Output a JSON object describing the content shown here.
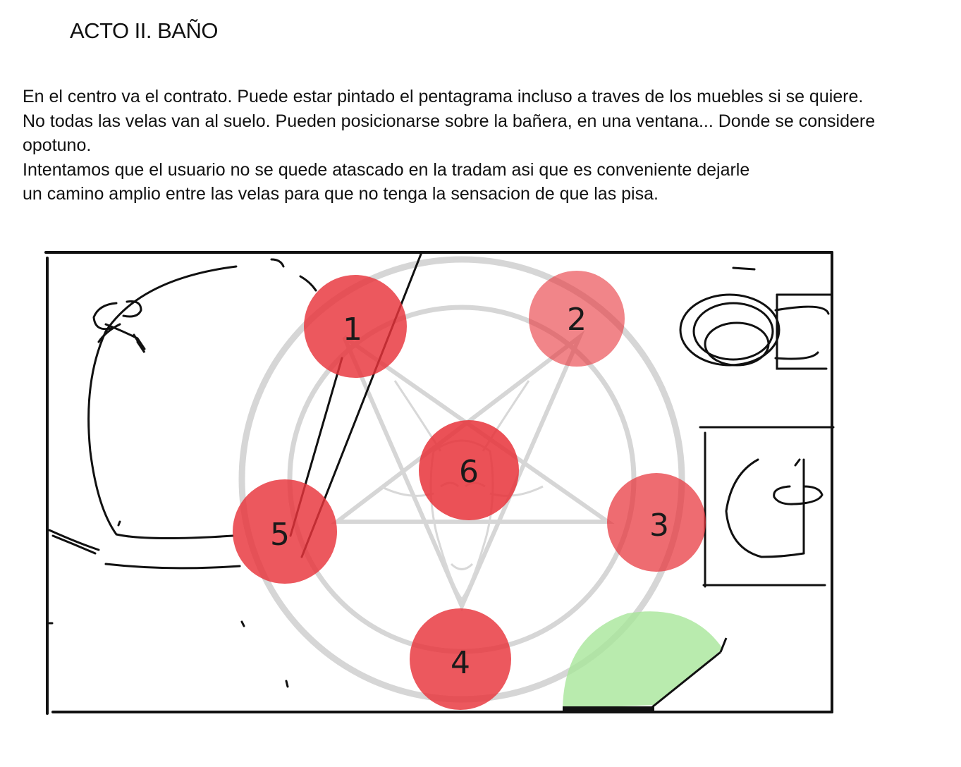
{
  "title": "ACTO II. BAÑO",
  "description": [
    "En el centro va el contrato. Puede estar pintado el  pentagrama incluso a traves de los muebles si se quiere.",
    "No todas las velas van al suelo. Pueden posicionarse sobre la bañera, en una ventana... Donde se considere",
    "opotuno.",
    "Intentamos que el usuario no se quede atascado en la tradam asi que es conveniente dejarle",
    "un camino amplio entre las velas para que no tenga la sensacion de que las pisa."
  ],
  "candles": [
    {
      "label": "1"
    },
    {
      "label": "2"
    },
    {
      "label": "3"
    },
    {
      "label": "4"
    },
    {
      "label": "5"
    },
    {
      "label": "6"
    }
  ],
  "colors": {
    "candle": "#e8333a",
    "door_swing": "#a8e69a",
    "pentagram": "#c8c8c8",
    "ink": "#111111"
  }
}
